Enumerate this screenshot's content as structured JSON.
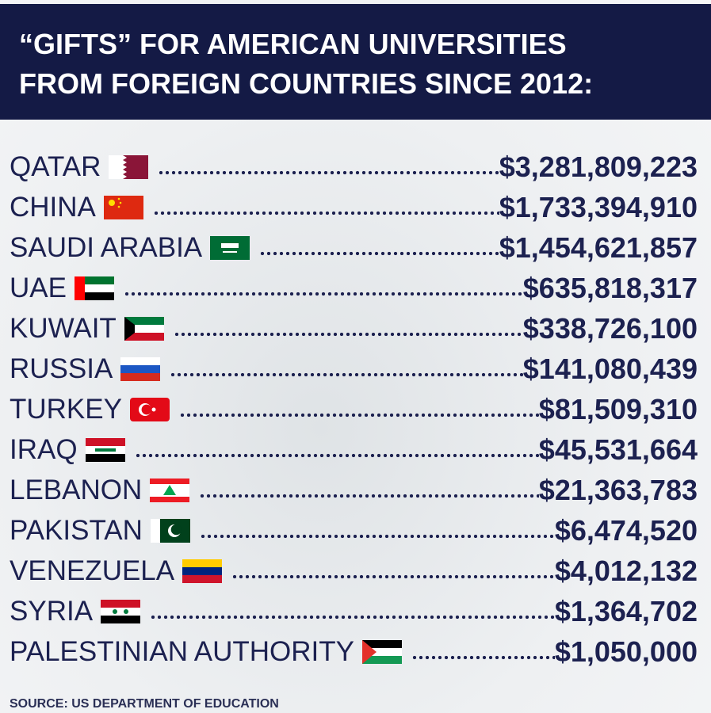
{
  "header": {
    "title": [
      "“GIFTS” FOR AMERICAN UNIVERSITIES",
      "FROM FOREIGN COUNTRIES SINCE 2012:"
    ]
  },
  "rows": [
    {
      "country": "QATAR",
      "amount": "$3,281,809,223"
    },
    {
      "country": "CHINA",
      "amount": "$1,733,394,910"
    },
    {
      "country": "SAUDI ARABIA",
      "amount": "$1,454,621,857"
    },
    {
      "country": "UAE",
      "amount": "$635,818,317"
    },
    {
      "country": "KUWAIT",
      "amount": "$338,726,100"
    },
    {
      "country": "RUSSIA",
      "amount": "$141,080,439"
    },
    {
      "country": "TURKEY",
      "amount": "$81,509,310"
    },
    {
      "country": "IRAQ",
      "amount": "$45,531,664"
    },
    {
      "country": "LEBANON",
      "amount": "$21,363,783"
    },
    {
      "country": "PAKISTAN",
      "amount": "$6,474,520"
    },
    {
      "country": "VENEZUELA",
      "amount": "$4,012,132"
    },
    {
      "country": "SYRIA",
      "amount": "$1,364,702"
    },
    {
      "country": "PALESTINIAN AUTHORITY",
      "amount": "$1,050,000"
    }
  ],
  "source": "SOURCE: US DEPARTMENT OF EDUCATION"
}
